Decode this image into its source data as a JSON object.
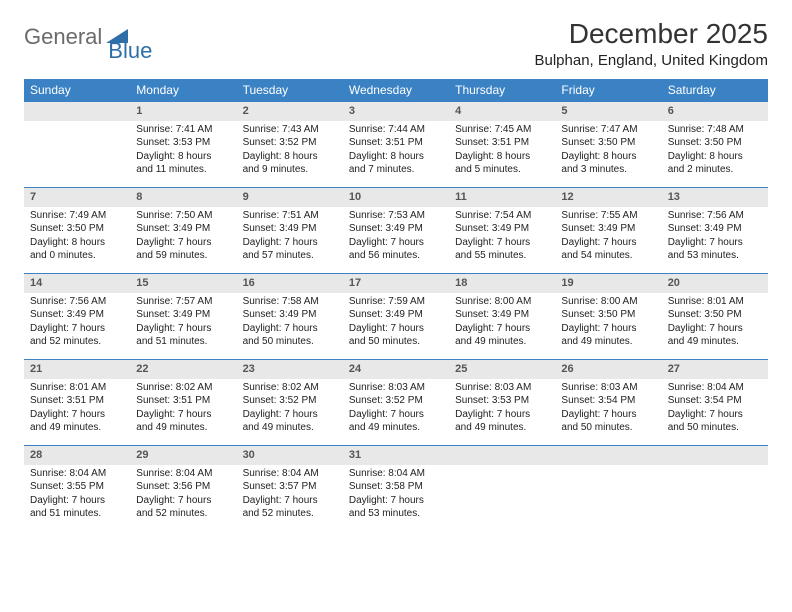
{
  "logo": {
    "word1": "General",
    "word2": "Blue",
    "word1_color": "#6b6b6b",
    "word2_color": "#2f6fa8",
    "icon_color": "#2f6fa8"
  },
  "title": "December 2025",
  "location": "Bulphan, England, United Kingdom",
  "colors": {
    "header_bg": "#3b82c4",
    "header_text": "#ffffff",
    "daynum_bg": "#e8e8e8",
    "daynum_border": "#3b82c4",
    "body_text": "#222222"
  },
  "day_headers": [
    "Sunday",
    "Monday",
    "Tuesday",
    "Wednesday",
    "Thursday",
    "Friday",
    "Saturday"
  ],
  "weeks": [
    [
      {
        "n": "",
        "lines": [
          "",
          "",
          "",
          ""
        ]
      },
      {
        "n": "1",
        "lines": [
          "Sunrise: 7:41 AM",
          "Sunset: 3:53 PM",
          "Daylight: 8 hours",
          "and 11 minutes."
        ]
      },
      {
        "n": "2",
        "lines": [
          "Sunrise: 7:43 AM",
          "Sunset: 3:52 PM",
          "Daylight: 8 hours",
          "and 9 minutes."
        ]
      },
      {
        "n": "3",
        "lines": [
          "Sunrise: 7:44 AM",
          "Sunset: 3:51 PM",
          "Daylight: 8 hours",
          "and 7 minutes."
        ]
      },
      {
        "n": "4",
        "lines": [
          "Sunrise: 7:45 AM",
          "Sunset: 3:51 PM",
          "Daylight: 8 hours",
          "and 5 minutes."
        ]
      },
      {
        "n": "5",
        "lines": [
          "Sunrise: 7:47 AM",
          "Sunset: 3:50 PM",
          "Daylight: 8 hours",
          "and 3 minutes."
        ]
      },
      {
        "n": "6",
        "lines": [
          "Sunrise: 7:48 AM",
          "Sunset: 3:50 PM",
          "Daylight: 8 hours",
          "and 2 minutes."
        ]
      }
    ],
    [
      {
        "n": "7",
        "lines": [
          "Sunrise: 7:49 AM",
          "Sunset: 3:50 PM",
          "Daylight: 8 hours",
          "and 0 minutes."
        ]
      },
      {
        "n": "8",
        "lines": [
          "Sunrise: 7:50 AM",
          "Sunset: 3:49 PM",
          "Daylight: 7 hours",
          "and 59 minutes."
        ]
      },
      {
        "n": "9",
        "lines": [
          "Sunrise: 7:51 AM",
          "Sunset: 3:49 PM",
          "Daylight: 7 hours",
          "and 57 minutes."
        ]
      },
      {
        "n": "10",
        "lines": [
          "Sunrise: 7:53 AM",
          "Sunset: 3:49 PM",
          "Daylight: 7 hours",
          "and 56 minutes."
        ]
      },
      {
        "n": "11",
        "lines": [
          "Sunrise: 7:54 AM",
          "Sunset: 3:49 PM",
          "Daylight: 7 hours",
          "and 55 minutes."
        ]
      },
      {
        "n": "12",
        "lines": [
          "Sunrise: 7:55 AM",
          "Sunset: 3:49 PM",
          "Daylight: 7 hours",
          "and 54 minutes."
        ]
      },
      {
        "n": "13",
        "lines": [
          "Sunrise: 7:56 AM",
          "Sunset: 3:49 PM",
          "Daylight: 7 hours",
          "and 53 minutes."
        ]
      }
    ],
    [
      {
        "n": "14",
        "lines": [
          "Sunrise: 7:56 AM",
          "Sunset: 3:49 PM",
          "Daylight: 7 hours",
          "and 52 minutes."
        ]
      },
      {
        "n": "15",
        "lines": [
          "Sunrise: 7:57 AM",
          "Sunset: 3:49 PM",
          "Daylight: 7 hours",
          "and 51 minutes."
        ]
      },
      {
        "n": "16",
        "lines": [
          "Sunrise: 7:58 AM",
          "Sunset: 3:49 PM",
          "Daylight: 7 hours",
          "and 50 minutes."
        ]
      },
      {
        "n": "17",
        "lines": [
          "Sunrise: 7:59 AM",
          "Sunset: 3:49 PM",
          "Daylight: 7 hours",
          "and 50 minutes."
        ]
      },
      {
        "n": "18",
        "lines": [
          "Sunrise: 8:00 AM",
          "Sunset: 3:49 PM",
          "Daylight: 7 hours",
          "and 49 minutes."
        ]
      },
      {
        "n": "19",
        "lines": [
          "Sunrise: 8:00 AM",
          "Sunset: 3:50 PM",
          "Daylight: 7 hours",
          "and 49 minutes."
        ]
      },
      {
        "n": "20",
        "lines": [
          "Sunrise: 8:01 AM",
          "Sunset: 3:50 PM",
          "Daylight: 7 hours",
          "and 49 minutes."
        ]
      }
    ],
    [
      {
        "n": "21",
        "lines": [
          "Sunrise: 8:01 AM",
          "Sunset: 3:51 PM",
          "Daylight: 7 hours",
          "and 49 minutes."
        ]
      },
      {
        "n": "22",
        "lines": [
          "Sunrise: 8:02 AM",
          "Sunset: 3:51 PM",
          "Daylight: 7 hours",
          "and 49 minutes."
        ]
      },
      {
        "n": "23",
        "lines": [
          "Sunrise: 8:02 AM",
          "Sunset: 3:52 PM",
          "Daylight: 7 hours",
          "and 49 minutes."
        ]
      },
      {
        "n": "24",
        "lines": [
          "Sunrise: 8:03 AM",
          "Sunset: 3:52 PM",
          "Daylight: 7 hours",
          "and 49 minutes."
        ]
      },
      {
        "n": "25",
        "lines": [
          "Sunrise: 8:03 AM",
          "Sunset: 3:53 PM",
          "Daylight: 7 hours",
          "and 49 minutes."
        ]
      },
      {
        "n": "26",
        "lines": [
          "Sunrise: 8:03 AM",
          "Sunset: 3:54 PM",
          "Daylight: 7 hours",
          "and 50 minutes."
        ]
      },
      {
        "n": "27",
        "lines": [
          "Sunrise: 8:04 AM",
          "Sunset: 3:54 PM",
          "Daylight: 7 hours",
          "and 50 minutes."
        ]
      }
    ],
    [
      {
        "n": "28",
        "lines": [
          "Sunrise: 8:04 AM",
          "Sunset: 3:55 PM",
          "Daylight: 7 hours",
          "and 51 minutes."
        ]
      },
      {
        "n": "29",
        "lines": [
          "Sunrise: 8:04 AM",
          "Sunset: 3:56 PM",
          "Daylight: 7 hours",
          "and 52 minutes."
        ]
      },
      {
        "n": "30",
        "lines": [
          "Sunrise: 8:04 AM",
          "Sunset: 3:57 PM",
          "Daylight: 7 hours",
          "and 52 minutes."
        ]
      },
      {
        "n": "31",
        "lines": [
          "Sunrise: 8:04 AM",
          "Sunset: 3:58 PM",
          "Daylight: 7 hours",
          "and 53 minutes."
        ]
      },
      {
        "n": "",
        "lines": [
          "",
          "",
          "",
          ""
        ]
      },
      {
        "n": "",
        "lines": [
          "",
          "",
          "",
          ""
        ]
      },
      {
        "n": "",
        "lines": [
          "",
          "",
          "",
          ""
        ]
      }
    ]
  ]
}
